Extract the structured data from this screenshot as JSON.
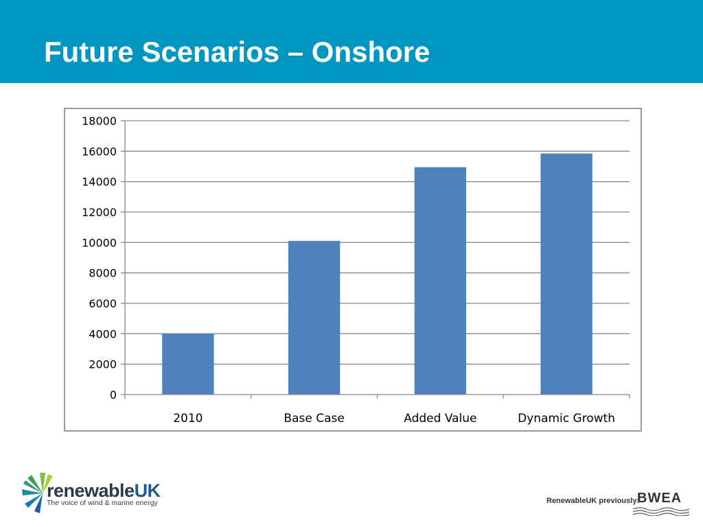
{
  "slide": {
    "title": "Future Scenarios – Onshore"
  },
  "colors": {
    "header": "#0096c0",
    "bar": "#4f81bd",
    "grid": "#868686"
  },
  "chart_data": {
    "type": "bar",
    "categories": [
      "2010",
      "Base Case",
      "Added Value",
      "Dynamic Growth"
    ],
    "values": [
      4000,
      10100,
      14950,
      15850
    ],
    "ylim": [
      0,
      18000
    ],
    "yticks": [
      "0",
      "2000",
      "4000",
      "6000",
      "8000",
      "10000",
      "12000",
      "14000",
      "16000",
      "18000"
    ],
    "grid": true,
    "legend": "none"
  },
  "footer": {
    "logo_left": {
      "name_part1": "renewable",
      "name_part2": "UK",
      "tagline": "The voice of wind & marine energy"
    },
    "logo_right": {
      "label": "RenewableUK previously:",
      "brand": "BWEA"
    }
  }
}
